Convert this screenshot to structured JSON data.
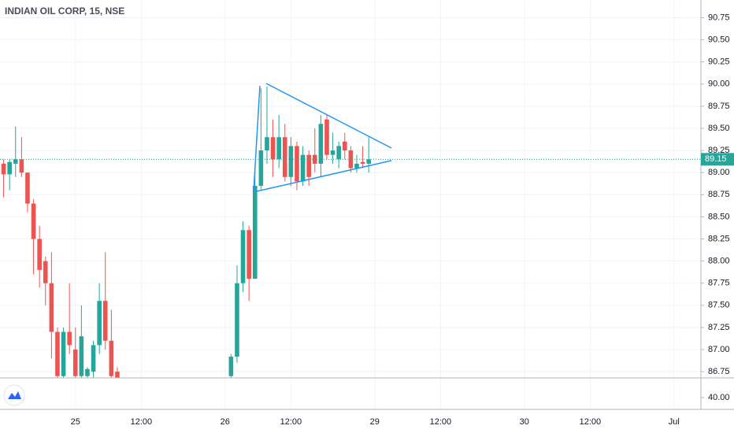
{
  "chart_data": {
    "type": "candlestick",
    "title": "INDIAN OIL CORP, 15, NSE",
    "up_color": "#26a69a",
    "down_color": "#ef5350",
    "grid": true,
    "series": [
      {
        "x": [
          -12,
          -11,
          -10,
          -9,
          -8,
          -7,
          -6,
          -5,
          -4,
          -3,
          -2,
          -1,
          0,
          1,
          2,
          3,
          4,
          5,
          6,
          7,
          26,
          27,
          28,
          29,
          30,
          31,
          32,
          33,
          34,
          35,
          36,
          37,
          38,
          39,
          40,
          41,
          42,
          43,
          44,
          45,
          46,
          47,
          48,
          49
        ],
        "open": [
          89.1,
          88.98,
          89.1,
          89.15,
          89.0,
          88.65,
          88.25,
          88.0,
          87.75,
          87.2,
          86.7,
          87.2,
          87.0,
          86.7,
          86.7,
          86.75,
          87.05,
          87.55,
          87.1,
          86.75,
          86.7,
          86.92,
          87.75,
          88.35,
          87.8,
          88.85,
          89.25,
          89.4,
          89.15,
          89.4,
          88.95,
          89.3,
          88.9,
          89.2,
          89.2,
          89.1,
          89.6,
          89.2,
          89.15,
          89.35,
          89.25,
          89.05,
          89.12,
          89.1
        ],
        "high": [
          89.15,
          89.15,
          89.52,
          89.4,
          89.0,
          88.7,
          88.4,
          88.05,
          88.1,
          87.25,
          87.25,
          87.75,
          87.25,
          87.5,
          86.8,
          87.1,
          87.75,
          88.1,
          87.45,
          86.8,
          86.95,
          87.95,
          88.45,
          88.4,
          89.05,
          89.95,
          89.97,
          89.6,
          89.65,
          89.55,
          89.4,
          89.35,
          89.3,
          89.25,
          89.5,
          89.65,
          89.65,
          89.45,
          89.35,
          89.45,
          89.3,
          89.2,
          89.3,
          89.4
        ],
        "low": [
          88.72,
          88.8,
          88.95,
          88.95,
          88.55,
          87.85,
          87.7,
          87.5,
          86.9,
          86.6,
          86.6,
          86.95,
          86.6,
          86.6,
          86.6,
          86.6,
          86.95,
          87.0,
          86.6,
          86.5,
          86.6,
          86.85,
          87.65,
          87.55,
          87.8,
          88.8,
          89.1,
          88.95,
          89.05,
          88.9,
          88.85,
          88.8,
          88.85,
          88.85,
          89.0,
          88.95,
          89.15,
          89.1,
          89.05,
          89.15,
          89.0,
          89.0,
          89.05,
          89.0
        ],
        "close": [
          88.98,
          89.12,
          89.15,
          89.0,
          88.65,
          88.25,
          87.9,
          87.75,
          87.2,
          86.7,
          87.2,
          87.05,
          86.7,
          87.15,
          86.78,
          87.05,
          87.55,
          87.1,
          86.7,
          86.65,
          86.92,
          87.75,
          88.35,
          87.8,
          88.85,
          89.25,
          89.4,
          89.15,
          89.4,
          88.95,
          89.3,
          88.9,
          89.2,
          88.95,
          89.1,
          89.55,
          89.2,
          89.25,
          89.3,
          89.25,
          89.05,
          89.1,
          89.1,
          89.15
        ]
      }
    ],
    "last_price": 89.15,
    "last_price_color": "#26a69a",
    "xlim": [
      -12.6,
      104.5
    ],
    "xticks": [
      {
        "value": 0,
        "label": "25"
      },
      {
        "value": 11,
        "label": "12:00"
      },
      {
        "value": 25,
        "label": "26"
      },
      {
        "value": 36,
        "label": "12:00"
      },
      {
        "value": 50,
        "label": "29"
      },
      {
        "value": 61,
        "label": "12:00"
      },
      {
        "value": 75,
        "label": "30"
      },
      {
        "value": 86,
        "label": "12:00"
      },
      {
        "value": 100,
        "label": "Jul"
      }
    ],
    "ylim": [
      86.68,
      90.95
    ],
    "yticks": [
      86.75,
      {
        "value": 87,
        "label": "87.00"
      },
      87.25,
      {
        "value": 87.5,
        "label": "87.50"
      },
      87.75,
      {
        "value": 88,
        "label": "88.00"
      },
      88.25,
      {
        "value": 88.5,
        "label": "88.50"
      },
      88.75,
      {
        "value": 89,
        "label": "89.00"
      },
      89.25,
      {
        "value": 89.5,
        "label": "89.50"
      },
      89.75,
      {
        "value": 90,
        "label": "90.00"
      },
      90.25,
      {
        "value": 90.5,
        "label": "90.50"
      },
      90.75
    ],
    "indicator_ylim": [
      37,
      45
    ],
    "indicator_yticks": [
      {
        "value": 40,
        "label": "40.00"
      }
    ]
  }
}
